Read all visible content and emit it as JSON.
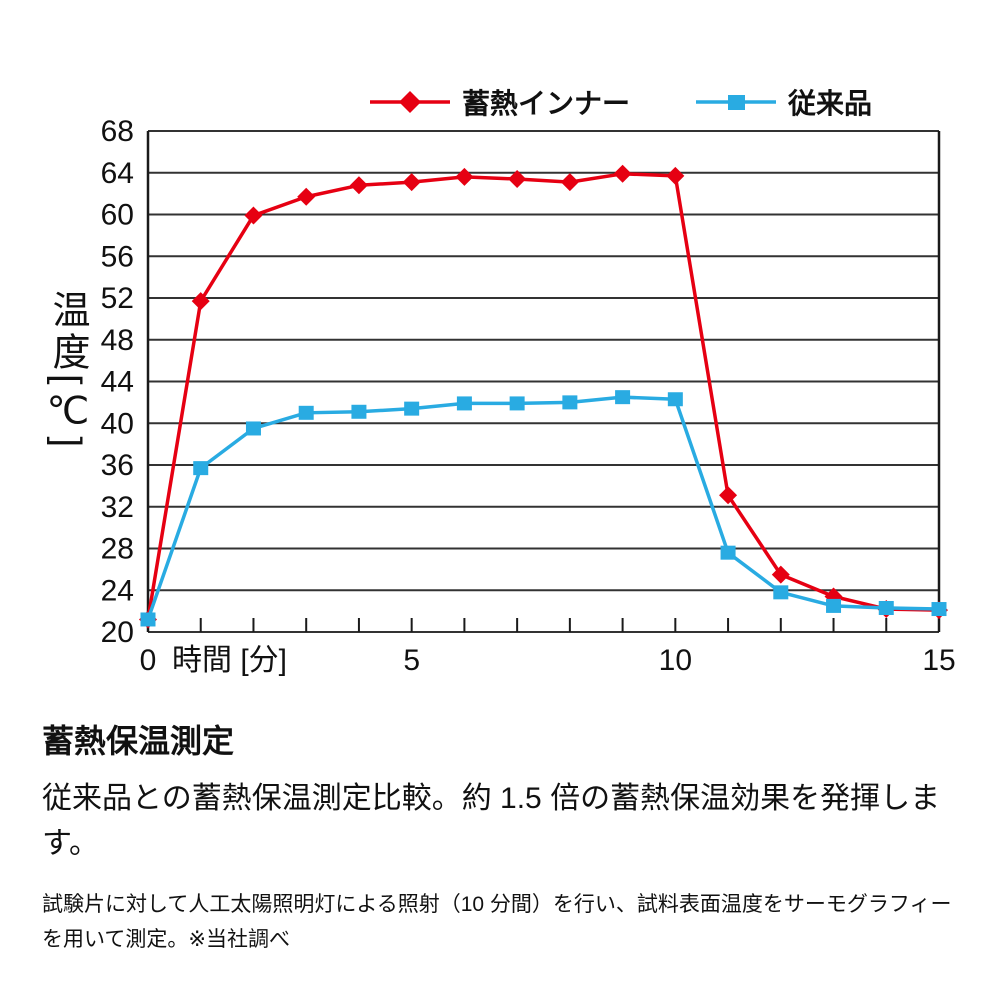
{
  "chart_data": {
    "type": "line",
    "title": "",
    "xlabel": "時間 [分]",
    "ylabel": "温度[℃]",
    "xlim": [
      0,
      15
    ],
    "ylim": [
      20,
      68
    ],
    "x": [
      0,
      1,
      2,
      3,
      4,
      5,
      6,
      7,
      8,
      9,
      10,
      11,
      12,
      13,
      14,
      15
    ],
    "xticks": [
      0,
      5,
      10,
      15
    ],
    "yticks": [
      20,
      24,
      28,
      32,
      36,
      40,
      44,
      48,
      52,
      56,
      60,
      64,
      68
    ],
    "grid": "horizontal",
    "grid_color": "#333333",
    "axis_color": "#1a1a1a",
    "legend_position": "top",
    "series": [
      {
        "name": "蓄熱インナー",
        "color": "#e60012",
        "marker": "diamond",
        "values": [
          21.2,
          51.7,
          59.9,
          61.7,
          62.8,
          63.1,
          63.6,
          63.4,
          63.1,
          63.9,
          63.7,
          33.1,
          25.5,
          23.4,
          22.2,
          22.1
        ]
      },
      {
        "name": "従来品",
        "color": "#29abe2",
        "marker": "square",
        "values": [
          21.2,
          35.7,
          39.5,
          41.0,
          41.1,
          41.4,
          41.9,
          41.9,
          42.0,
          42.5,
          42.3,
          27.6,
          23.8,
          22.5,
          22.3,
          22.2
        ]
      }
    ]
  },
  "caption": {
    "title": "蓄熱保温測定",
    "body": "従来品との蓄熱保温測定比較。約 1.5 倍の蓄熱保温効果を発揮します。",
    "footnote": "試験片に対して人工太陽照明灯による照射（10 分間）を行い、試料表面温度をサーモグラフィーを用いて測定。※当社調べ"
  }
}
